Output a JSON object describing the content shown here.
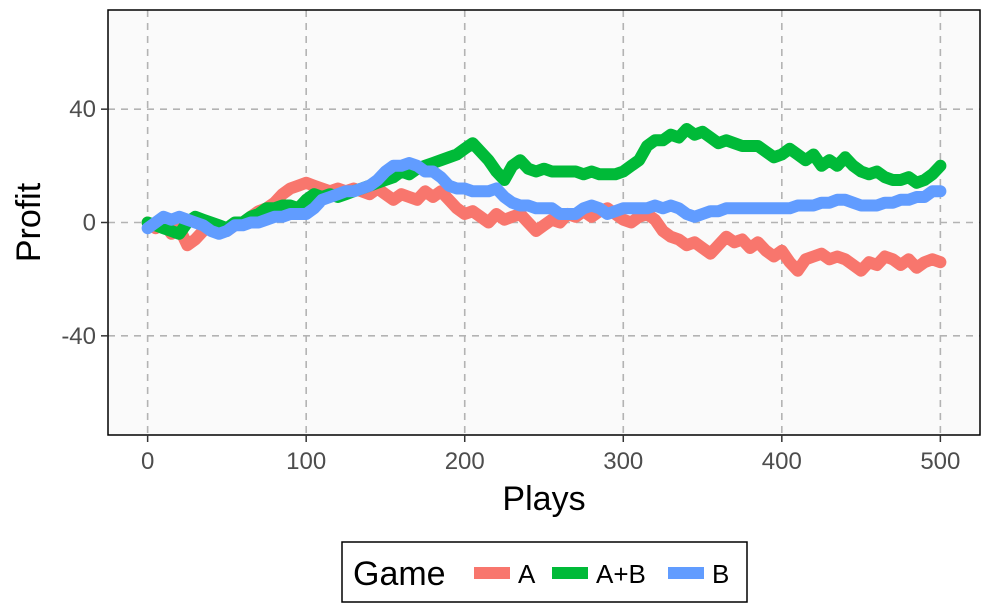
{
  "chart_data": {
    "type": "line",
    "xlabel": "Plays",
    "ylabel": "Profit",
    "xlim": [
      -25,
      525
    ],
    "ylim": [
      -75,
      75
    ],
    "x_ticks": [
      0,
      100,
      200,
      300,
      400,
      500
    ],
    "y_ticks": [
      -40,
      0,
      40
    ],
    "grid": true,
    "legend": {
      "title": "Game",
      "position": "bottom"
    },
    "series": [
      {
        "name": "A",
        "color": "#F8766D",
        "points": [
          [
            0,
            0
          ],
          [
            5,
            -2
          ],
          [
            10,
            0
          ],
          [
            15,
            -4
          ],
          [
            20,
            -2
          ],
          [
            25,
            -8
          ],
          [
            30,
            -6
          ],
          [
            35,
            -3
          ],
          [
            40,
            -1
          ],
          [
            45,
            -2
          ],
          [
            50,
            -3
          ],
          [
            55,
            -1
          ],
          [
            60,
            0
          ],
          [
            65,
            2
          ],
          [
            70,
            4
          ],
          [
            75,
            5
          ],
          [
            80,
            7
          ],
          [
            85,
            10
          ],
          [
            90,
            12
          ],
          [
            95,
            13
          ],
          [
            100,
            14
          ],
          [
            105,
            13
          ],
          [
            110,
            12
          ],
          [
            115,
            11
          ],
          [
            120,
            12
          ],
          [
            125,
            11
          ],
          [
            130,
            12
          ],
          [
            135,
            11
          ],
          [
            140,
            10
          ],
          [
            145,
            12
          ],
          [
            150,
            10
          ],
          [
            155,
            8
          ],
          [
            160,
            10
          ],
          [
            165,
            9
          ],
          [
            170,
            8
          ],
          [
            175,
            11
          ],
          [
            180,
            9
          ],
          [
            185,
            11
          ],
          [
            190,
            8
          ],
          [
            195,
            5
          ],
          [
            200,
            3
          ],
          [
            205,
            4
          ],
          [
            210,
            2
          ],
          [
            215,
            0
          ],
          [
            220,
            3
          ],
          [
            225,
            1
          ],
          [
            230,
            2
          ],
          [
            235,
            3
          ],
          [
            240,
            0
          ],
          [
            245,
            -3
          ],
          [
            250,
            -1
          ],
          [
            255,
            1
          ],
          [
            260,
            0
          ],
          [
            265,
            3
          ],
          [
            270,
            2
          ],
          [
            275,
            4
          ],
          [
            280,
            2
          ],
          [
            285,
            4
          ],
          [
            290,
            5
          ],
          [
            295,
            3
          ],
          [
            300,
            1
          ],
          [
            305,
            0
          ],
          [
            310,
            2
          ],
          [
            315,
            3
          ],
          [
            320,
            1
          ],
          [
            325,
            -3
          ],
          [
            330,
            -5
          ],
          [
            335,
            -6
          ],
          [
            340,
            -8
          ],
          [
            345,
            -7
          ],
          [
            350,
            -9
          ],
          [
            355,
            -11
          ],
          [
            360,
            -8
          ],
          [
            365,
            -5
          ],
          [
            370,
            -7
          ],
          [
            375,
            -6
          ],
          [
            380,
            -9
          ],
          [
            385,
            -7
          ],
          [
            390,
            -10
          ],
          [
            395,
            -12
          ],
          [
            400,
            -10
          ],
          [
            405,
            -14
          ],
          [
            410,
            -17
          ],
          [
            415,
            -13
          ],
          [
            420,
            -12
          ],
          [
            425,
            -11
          ],
          [
            430,
            -13
          ],
          [
            435,
            -12
          ],
          [
            440,
            -13
          ],
          [
            445,
            -15
          ],
          [
            450,
            -17
          ],
          [
            455,
            -14
          ],
          [
            460,
            -15
          ],
          [
            465,
            -12
          ],
          [
            470,
            -13
          ],
          [
            475,
            -15
          ],
          [
            480,
            -13
          ],
          [
            485,
            -16
          ],
          [
            490,
            -14
          ],
          [
            495,
            -13
          ],
          [
            500,
            -14
          ]
        ]
      },
      {
        "name": "A+B",
        "color": "#00BA38",
        "points": [
          [
            0,
            0
          ],
          [
            5,
            -1
          ],
          [
            10,
            -2
          ],
          [
            15,
            -3
          ],
          [
            20,
            -4
          ],
          [
            25,
            0
          ],
          [
            30,
            2
          ],
          [
            35,
            1
          ],
          [
            40,
            0
          ],
          [
            45,
            -1
          ],
          [
            50,
            -2
          ],
          [
            55,
            0
          ],
          [
            60,
            0
          ],
          [
            65,
            2
          ],
          [
            70,
            3
          ],
          [
            75,
            5
          ],
          [
            80,
            5
          ],
          [
            85,
            6
          ],
          [
            90,
            6
          ],
          [
            95,
            5
          ],
          [
            100,
            8
          ],
          [
            105,
            10
          ],
          [
            110,
            9
          ],
          [
            115,
            10
          ],
          [
            120,
            9
          ],
          [
            125,
            10
          ],
          [
            130,
            11
          ],
          [
            135,
            12
          ],
          [
            140,
            13
          ],
          [
            145,
            14
          ],
          [
            150,
            15
          ],
          [
            155,
            16
          ],
          [
            160,
            18
          ],
          [
            165,
            17
          ],
          [
            170,
            19
          ],
          [
            175,
            20
          ],
          [
            180,
            21
          ],
          [
            185,
            22
          ],
          [
            190,
            23
          ],
          [
            195,
            24
          ],
          [
            200,
            26
          ],
          [
            205,
            28
          ],
          [
            210,
            25
          ],
          [
            215,
            22
          ],
          [
            220,
            18
          ],
          [
            225,
            15
          ],
          [
            230,
            20
          ],
          [
            235,
            22
          ],
          [
            240,
            19
          ],
          [
            245,
            18
          ],
          [
            250,
            19
          ],
          [
            255,
            18
          ],
          [
            260,
            18
          ],
          [
            265,
            18
          ],
          [
            270,
            18
          ],
          [
            275,
            17
          ],
          [
            280,
            18
          ],
          [
            285,
            17
          ],
          [
            290,
            17
          ],
          [
            295,
            17
          ],
          [
            300,
            18
          ],
          [
            305,
            20
          ],
          [
            310,
            22
          ],
          [
            315,
            27
          ],
          [
            320,
            29
          ],
          [
            325,
            29
          ],
          [
            330,
            31
          ],
          [
            335,
            30
          ],
          [
            340,
            33
          ],
          [
            345,
            31
          ],
          [
            350,
            32
          ],
          [
            355,
            30
          ],
          [
            360,
            28
          ],
          [
            365,
            29
          ],
          [
            370,
            28
          ],
          [
            375,
            27
          ],
          [
            380,
            27
          ],
          [
            385,
            27
          ],
          [
            390,
            25
          ],
          [
            395,
            23
          ],
          [
            400,
            24
          ],
          [
            405,
            26
          ],
          [
            410,
            24
          ],
          [
            415,
            22
          ],
          [
            420,
            24
          ],
          [
            425,
            20
          ],
          [
            430,
            22
          ],
          [
            435,
            20
          ],
          [
            440,
            23
          ],
          [
            445,
            20
          ],
          [
            450,
            18
          ],
          [
            455,
            17
          ],
          [
            460,
            18
          ],
          [
            465,
            16
          ],
          [
            470,
            15
          ],
          [
            475,
            15
          ],
          [
            480,
            16
          ],
          [
            485,
            14
          ],
          [
            490,
            15
          ],
          [
            495,
            17
          ],
          [
            500,
            20
          ]
        ]
      },
      {
        "name": "B",
        "color": "#619CFF",
        "points": [
          [
            0,
            -2
          ],
          [
            5,
            0
          ],
          [
            10,
            2
          ],
          [
            15,
            1
          ],
          [
            20,
            2
          ],
          [
            25,
            1
          ],
          [
            30,
            0
          ],
          [
            35,
            -1
          ],
          [
            40,
            -3
          ],
          [
            45,
            -4
          ],
          [
            50,
            -3
          ],
          [
            55,
            -1
          ],
          [
            60,
            -1
          ],
          [
            65,
            0
          ],
          [
            70,
            0
          ],
          [
            75,
            1
          ],
          [
            80,
            2
          ],
          [
            85,
            2
          ],
          [
            90,
            3
          ],
          [
            95,
            3
          ],
          [
            100,
            3
          ],
          [
            105,
            5
          ],
          [
            110,
            8
          ],
          [
            115,
            9
          ],
          [
            120,
            10
          ],
          [
            125,
            11
          ],
          [
            130,
            11
          ],
          [
            135,
            12
          ],
          [
            140,
            13
          ],
          [
            145,
            15
          ],
          [
            150,
            18
          ],
          [
            155,
            20
          ],
          [
            160,
            20
          ],
          [
            165,
            21
          ],
          [
            170,
            20
          ],
          [
            175,
            18
          ],
          [
            180,
            18
          ],
          [
            185,
            16
          ],
          [
            190,
            13
          ],
          [
            195,
            12
          ],
          [
            200,
            12
          ],
          [
            205,
            11
          ],
          [
            210,
            11
          ],
          [
            215,
            11
          ],
          [
            220,
            12
          ],
          [
            225,
            9
          ],
          [
            230,
            7
          ],
          [
            235,
            6
          ],
          [
            240,
            6
          ],
          [
            245,
            5
          ],
          [
            250,
            5
          ],
          [
            255,
            5
          ],
          [
            260,
            3
          ],
          [
            265,
            3
          ],
          [
            270,
            3
          ],
          [
            275,
            5
          ],
          [
            280,
            6
          ],
          [
            285,
            5
          ],
          [
            290,
            3
          ],
          [
            295,
            4
          ],
          [
            300,
            5
          ],
          [
            305,
            5
          ],
          [
            310,
            5
          ],
          [
            315,
            5
          ],
          [
            320,
            6
          ],
          [
            325,
            5
          ],
          [
            330,
            6
          ],
          [
            335,
            5
          ],
          [
            340,
            3
          ],
          [
            345,
            2
          ],
          [
            350,
            3
          ],
          [
            355,
            4
          ],
          [
            360,
            4
          ],
          [
            365,
            5
          ],
          [
            370,
            5
          ],
          [
            375,
            5
          ],
          [
            380,
            5
          ],
          [
            385,
            5
          ],
          [
            390,
            5
          ],
          [
            395,
            5
          ],
          [
            400,
            5
          ],
          [
            405,
            5
          ],
          [
            410,
            6
          ],
          [
            415,
            6
          ],
          [
            420,
            6
          ],
          [
            425,
            7
          ],
          [
            430,
            7
          ],
          [
            435,
            8
          ],
          [
            440,
            8
          ],
          [
            445,
            7
          ],
          [
            450,
            6
          ],
          [
            455,
            6
          ],
          [
            460,
            6
          ],
          [
            465,
            7
          ],
          [
            470,
            7
          ],
          [
            475,
            8
          ],
          [
            480,
            8
          ],
          [
            485,
            9
          ],
          [
            490,
            9
          ],
          [
            495,
            11
          ],
          [
            500,
            11
          ]
        ]
      }
    ]
  }
}
